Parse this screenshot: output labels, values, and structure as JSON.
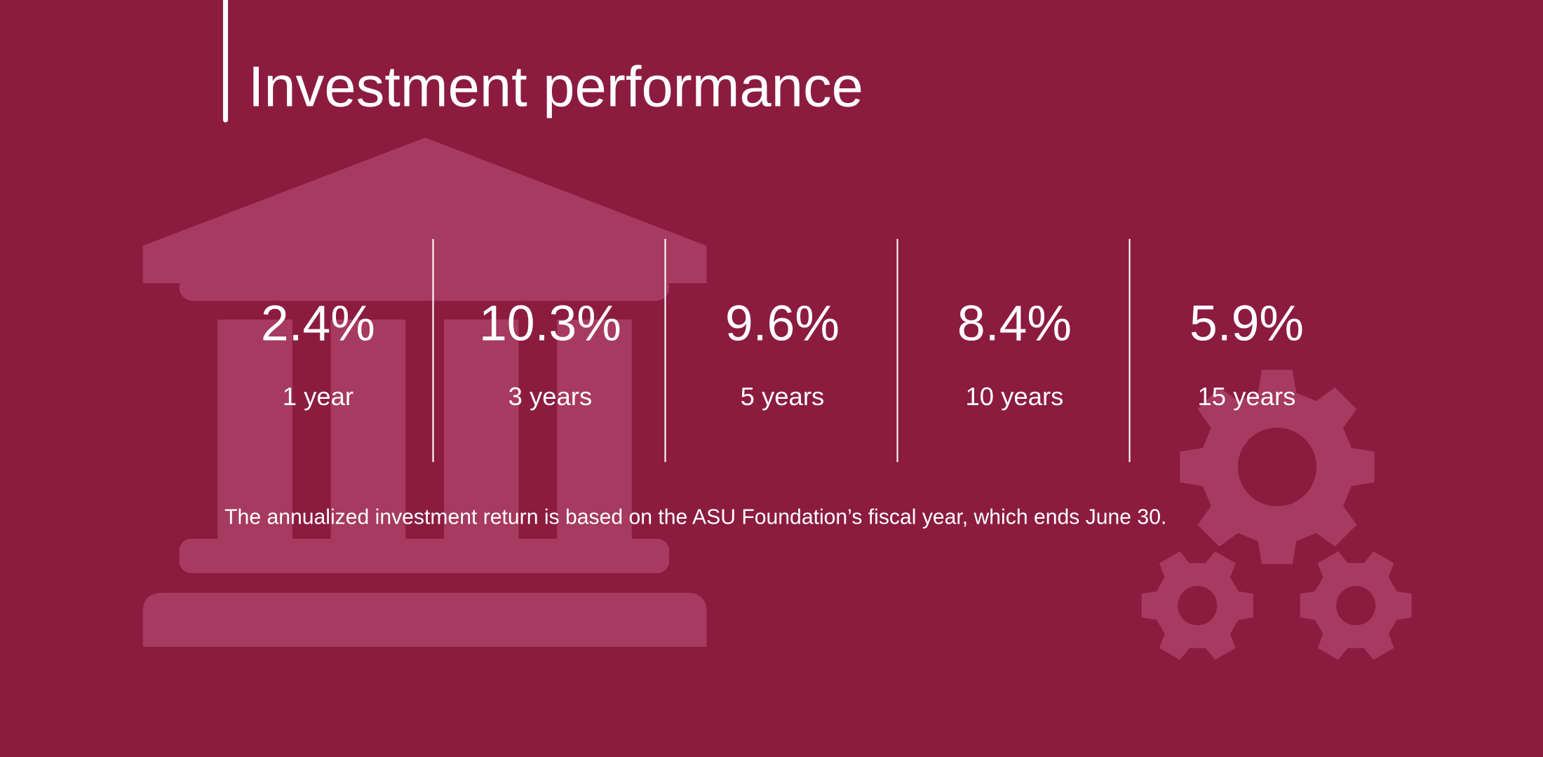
{
  "title": "Investment performance",
  "stats": [
    {
      "value": "2.4%",
      "label": "1 year"
    },
    {
      "value": "10.3%",
      "label": "3 years"
    },
    {
      "value": "9.6%",
      "label": "5 years"
    },
    {
      "value": "8.4%",
      "label": "10 years"
    },
    {
      "value": "5.9%",
      "label": "15 years"
    }
  ],
  "footnote": "The annualized investment return is based on the ASU Foundation’s fiscal year, which ends June 30."
}
